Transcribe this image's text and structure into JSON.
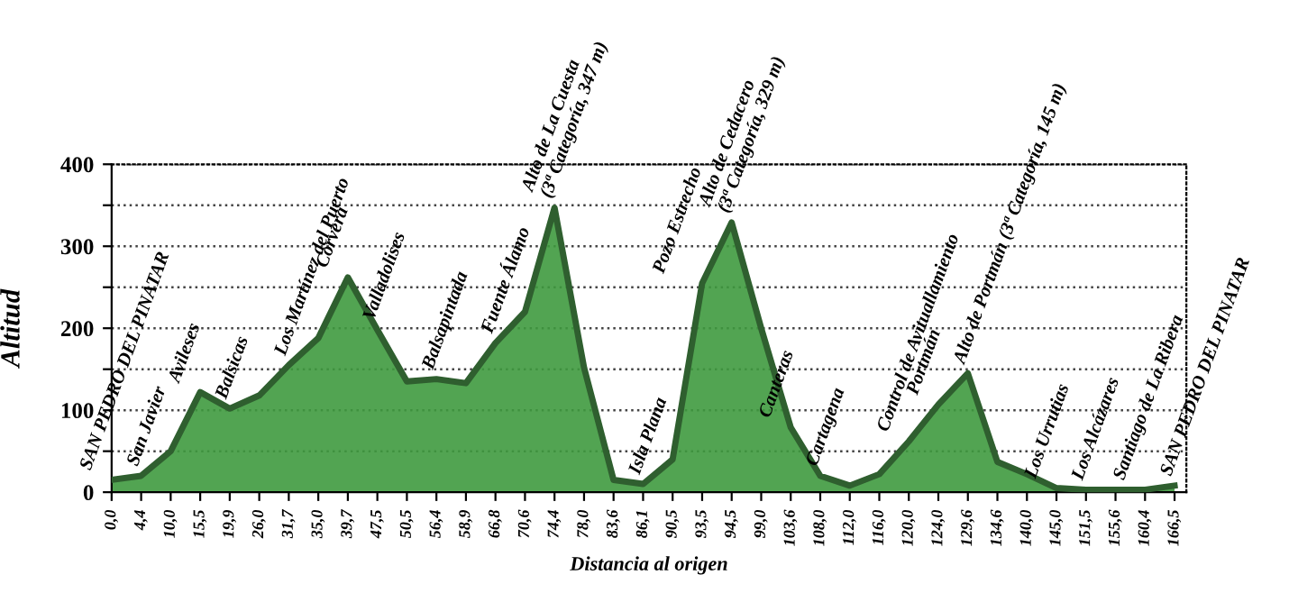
{
  "chart_data": {
    "type": "area",
    "xlabel": "Distancia al origen",
    "ylabel": "Altitud",
    "categories": [
      "0,0",
      "4,4",
      "10,0",
      "15,5",
      "19,9",
      "26,0",
      "31,7",
      "35,0",
      "39,7",
      "47,5",
      "50,5",
      "56,4",
      "58,9",
      "66,8",
      "70,6",
      "74,4",
      "78,0",
      "83,6",
      "86,1",
      "90,5",
      "93,5",
      "94,5",
      "99,0",
      "103,6",
      "108,0",
      "112,0",
      "116,0",
      "120,0",
      "124,0",
      "129,6",
      "134,6",
      "140,0",
      "145,0",
      "151,5",
      "155,6",
      "160,4",
      "166,5"
    ],
    "series": [
      {
        "color": "#3f9a3f",
        "values": [
          15,
          20,
          50,
          122,
          102,
          118,
          155,
          188,
          262,
          198,
          135,
          138,
          133,
          182,
          220,
          347,
          152,
          15,
          10,
          40,
          255,
          329,
          200,
          79,
          20,
          8,
          22,
          62,
          107,
          145,
          37,
          22,
          5,
          3,
          3,
          3,
          8
        ]
      }
    ],
    "ylim": [
      0,
      400
    ],
    "yticks": [
      0,
      {
        "value": 50,
        "label": null
      },
      100,
      {
        "value": 150,
        "label": null
      },
      200,
      {
        "value": 250,
        "label": null
      },
      300,
      {
        "value": 350,
        "label": null
      },
      400
    ],
    "grid": "y",
    "line_style": "dotted",
    "annotations": [
      {
        "text": "SAN PEDRO DEL PINATAR",
        "x": "0,0",
        "y": 15
      },
      {
        "text": "San Javier",
        "x": "4,4",
        "y": 20
      },
      {
        "text": "Avileses",
        "x": "15,5",
        "y": 122
      },
      {
        "text": "Balsicas",
        "x": "19,9",
        "y": 102
      },
      {
        "text": "Los Martínez del Puerto",
        "x": "31,7",
        "y": 155
      },
      {
        "text": "Corvera",
        "x": "39,7",
        "y": 262
      },
      {
        "text": "Valladolises",
        "x": "47,5",
        "y": 198
      },
      {
        "text": "Balsapintada",
        "x": "56,4",
        "y": 138
      },
      {
        "text": "Fuente Álamo",
        "x": "66,8",
        "y": 182
      },
      {
        "text": "Alto de La Cuesta\n(3ª Categoría, 347 m)",
        "x": "74,4",
        "y": 347
      },
      {
        "text": "Isla Plana",
        "x": "86,1",
        "y": 10
      },
      {
        "text": "Pozo Estrecho",
        "x": "93,5",
        "y": 255
      },
      {
        "text": "Alto de Cedacero\n(3ª Categoría, 329 m)",
        "x": "94,5",
        "y": 329
      },
      {
        "text": "Canteras",
        "x": "103,6",
        "y": 79
      },
      {
        "text": "Cartagena",
        "x": "108,0",
        "y": 20
      },
      {
        "text": "Control de Avituallamiento",
        "x": "120,0",
        "y": 62
      },
      {
        "text": "Portmán",
        "x": "124,0",
        "y": 107
      },
      {
        "text": "Alto de Portmán (3ª Categoría, 145 m)",
        "x": "129,6",
        "y": 145
      },
      {
        "text": "Los Urrutias",
        "x": "145,0",
        "y": 5
      },
      {
        "text": "Los Alcázares",
        "x": "151,5",
        "y": 3
      },
      {
        "text": "Santiago de La Ribera",
        "x": "160,4",
        "y": 3
      },
      {
        "text": "SAN PEDRO DEL PINATAR",
        "x": "166,5",
        "y": 8
      }
    ]
  }
}
